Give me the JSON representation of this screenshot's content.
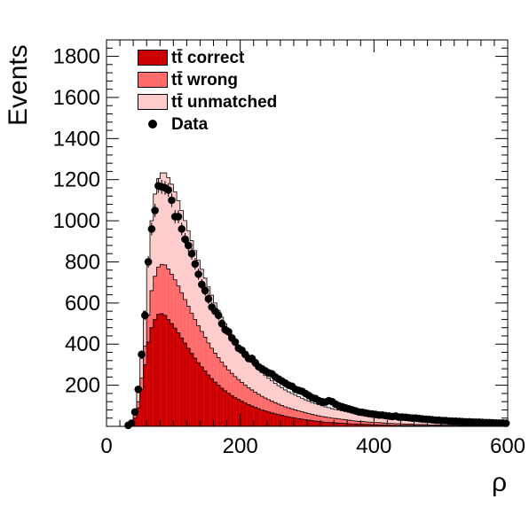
{
  "chart_data": {
    "type": "bar",
    "title": "",
    "xlabel": "ρ",
    "ylabel": "Events",
    "xlim": [
      0,
      600
    ],
    "ylim": [
      0,
      1880
    ],
    "x_ticks": [
      0,
      200,
      400,
      600
    ],
    "y_ticks": [
      200,
      400,
      600,
      800,
      1000,
      1200,
      1400,
      1600,
      1800
    ],
    "legend_position": "top-left",
    "bin_width": 5,
    "x": [
      32.5,
      37.5,
      42.5,
      47.5,
      52.5,
      57.5,
      62.5,
      67.5,
      72.5,
      77.5,
      82.5,
      87.5,
      92.5,
      97.5,
      102.5,
      107.5,
      112.5,
      117.5,
      122.5,
      127.5,
      132.5,
      137.5,
      142.5,
      147.5,
      152.5,
      157.5,
      162.5,
      167.5,
      172.5,
      177.5,
      182.5,
      187.5,
      192.5,
      197.5,
      202.5,
      207.5,
      212.5,
      217.5,
      222.5,
      227.5,
      232.5,
      237.5,
      242.5,
      247.5,
      252.5,
      257.5,
      262.5,
      267.5,
      272.5,
      277.5,
      282.5,
      287.5,
      292.5,
      297.5,
      302.5,
      307.5,
      312.5,
      317.5,
      322.5,
      327.5,
      332.5,
      337.5,
      342.5,
      347.5,
      352.5,
      357.5,
      362.5,
      367.5,
      372.5,
      377.5,
      382.5,
      387.5,
      392.5,
      397.5,
      402.5,
      407.5,
      412.5,
      417.5,
      422.5,
      427.5,
      432.5,
      437.5,
      442.5,
      447.5,
      452.5,
      457.5,
      462.5,
      467.5,
      472.5,
      477.5,
      482.5,
      487.5,
      492.5,
      497.5,
      502.5,
      507.5,
      512.5,
      517.5,
      522.5,
      527.5,
      532.5,
      537.5,
      542.5,
      547.5,
      552.5,
      557.5,
      562.5,
      567.5,
      572.5,
      577.5,
      582.5,
      587.5,
      592.5,
      597.5
    ],
    "series": [
      {
        "name": "tt̄ correct",
        "color": "#cc0000",
        "values": [
          5,
          16,
          40,
          90,
          180,
          300,
          410,
          480,
          520,
          545,
          548,
          540,
          520,
          500,
          478,
          455,
          430,
          405,
          380,
          355,
          332,
          310,
          290,
          270,
          250,
          232,
          215,
          200,
          186,
          173,
          161,
          150,
          140,
          131,
          122,
          114,
          106,
          99,
          92,
          86,
          80,
          75,
          70,
          65,
          61,
          57,
          53,
          49,
          46,
          43,
          40,
          37,
          35,
          32,
          30,
          28,
          26,
          24,
          22,
          20,
          19,
          18,
          17,
          16,
          15,
          14,
          13,
          12,
          11,
          10,
          10,
          9,
          9,
          8,
          8,
          7,
          7,
          6,
          6,
          5,
          5,
          5,
          4,
          4,
          4,
          4,
          3,
          3,
          3,
          3,
          2,
          2,
          2,
          2,
          2,
          2,
          2,
          1,
          1,
          1,
          1,
          1,
          1,
          1,
          1,
          1,
          1,
          1,
          1,
          1,
          1,
          1,
          1,
          1
        ]
      },
      {
        "name": "tt̄ wrong",
        "color": "#ff6b6b",
        "values": [
          2,
          6,
          14,
          30,
          55,
          90,
          130,
          180,
          210,
          230,
          240,
          245,
          245,
          240,
          235,
          228,
          220,
          212,
          204,
          196,
          188,
          180,
          172,
          164,
          156,
          148,
          141,
          134,
          127,
          120,
          114,
          108,
          102,
          97,
          92,
          87,
          82,
          78,
          74,
          70,
          66,
          63,
          60,
          57,
          54,
          51,
          48,
          46,
          44,
          42,
          40,
          38,
          36,
          34,
          32,
          30,
          29,
          27,
          26,
          25,
          24,
          22,
          21,
          20,
          19,
          18,
          17,
          16,
          15,
          14,
          14,
          13,
          12,
          12,
          11,
          11,
          10,
          10,
          9,
          9,
          8,
          8,
          8,
          7,
          7,
          7,
          6,
          6,
          6,
          6,
          5,
          5,
          5,
          5,
          4,
          4,
          4,
          4,
          4,
          3,
          3,
          3,
          3,
          3,
          3,
          3,
          3,
          2,
          2,
          2,
          2,
          2,
          2,
          2
        ]
      },
      {
        "name": "tt̄ unmatched",
        "color": "#ffcccc",
        "values": [
          3,
          8,
          20,
          45,
          95,
          170,
          250,
          340,
          400,
          430,
          445,
          448,
          445,
          438,
          428,
          415,
          400,
          384,
          368,
          352,
          335,
          318,
          302,
          287,
          272,
          258,
          244,
          230,
          218,
          206,
          195,
          185,
          175,
          166,
          157,
          149,
          141,
          134,
          127,
          121,
          115,
          109,
          104,
          99,
          94,
          90,
          86,
          82,
          78,
          75,
          72,
          69,
          66,
          63,
          61,
          58,
          56,
          54,
          52,
          50,
          48,
          46,
          44,
          43,
          41,
          40,
          38,
          37,
          36,
          35,
          34,
          33,
          32,
          31,
          30,
          29,
          28,
          28,
          27,
          26,
          26,
          25,
          25,
          24,
          24,
          23,
          23,
          22,
          22,
          21,
          21,
          20,
          20,
          20,
          19,
          19,
          19,
          18,
          18,
          18,
          17,
          17,
          17,
          17,
          16,
          16,
          16,
          16,
          15,
          15,
          15,
          15,
          15,
          14
        ]
      },
      {
        "name": "Data",
        "color": "#000000",
        "values": [
          5,
          15,
          70,
          180,
          350,
          540,
          800,
          960,
          1050,
          1170,
          1165,
          1160,
          1150,
          1100,
          1020,
          1020,
          960,
          910,
          880,
          840,
          790,
          740,
          690,
          660,
          620,
          580,
          560,
          540,
          500,
          470,
          460,
          430,
          410,
          380,
          370,
          350,
          330,
          330,
          310,
          290,
          280,
          270,
          260,
          255,
          240,
          230,
          220,
          210,
          200,
          195,
          180,
          175,
          170,
          160,
          150,
          140,
          135,
          125,
          120,
          118,
          125,
          120,
          108,
          100,
          95,
          90,
          85,
          80,
          75,
          70,
          68,
          65,
          62,
          60,
          58,
          55,
          55,
          52,
          50,
          48,
          50,
          45,
          45,
          44,
          42,
          40,
          40,
          38,
          36,
          35,
          34,
          32,
          30,
          30,
          28,
          28,
          26,
          25,
          25,
          24,
          23,
          22,
          22,
          21,
          20,
          20,
          19,
          18,
          18,
          17,
          16,
          16,
          16,
          15
        ]
      }
    ]
  }
}
